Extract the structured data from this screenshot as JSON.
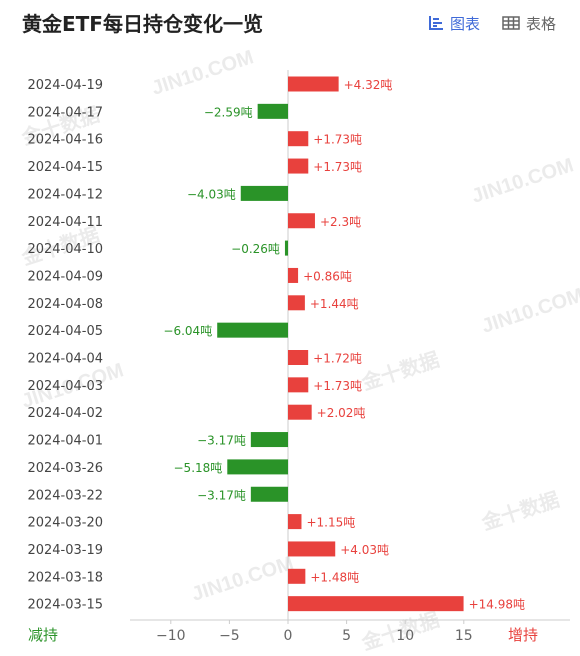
{
  "header": {
    "title": "黄金ETF每日持仓变化一览",
    "chart_tab": "图表",
    "table_tab": "表格"
  },
  "watermarks": [
    "JIN10.COM",
    "金十数据",
    "JIN10.COM",
    "金十数据",
    "JIN10.COM",
    "金十数据",
    "JIN10.COM",
    "金十数据",
    "JIN10.COM",
    "金十数据"
  ],
  "colors": {
    "positive": "#e8413d",
    "negative": "#2a9328",
    "active_tab": "#3f6ad8",
    "axis_text": "#666666"
  },
  "chart_data": {
    "type": "bar",
    "orientation": "horizontal",
    "title": "",
    "unit": "吨",
    "categories": [
      "2024-04-19",
      "2024-04-17",
      "2024-04-16",
      "2024-04-15",
      "2024-04-12",
      "2024-04-11",
      "2024-04-10",
      "2024-04-09",
      "2024-04-08",
      "2024-04-05",
      "2024-04-04",
      "2024-04-03",
      "2024-04-02",
      "2024-04-01",
      "2024-03-26",
      "2024-03-22",
      "2024-03-20",
      "2024-03-19",
      "2024-03-18",
      "2024-03-15"
    ],
    "values": [
      4.32,
      -2.59,
      1.73,
      1.73,
      -4.03,
      2.3,
      -0.26,
      0.86,
      1.44,
      -6.04,
      1.72,
      1.73,
      2.02,
      -3.17,
      -5.18,
      -3.17,
      1.15,
      4.03,
      1.48,
      14.98
    ],
    "labels": [
      "+4.32吨",
      "−2.59吨",
      "+1.73吨",
      "+1.73吨",
      "−4.03吨",
      "+2.3吨",
      "−0.26吨",
      "+0.86吨",
      "+1.44吨",
      "−6.04吨",
      "+1.72吨",
      "+1.73吨",
      "+2.02吨",
      "−3.17吨",
      "−5.18吨",
      "−3.17吨",
      "+1.15吨",
      "+4.03吨",
      "+1.48吨",
      "+14.98吨"
    ],
    "xlim": [
      -15,
      17.5
    ],
    "xticks": [
      -10,
      -5,
      0,
      5,
      10,
      15
    ],
    "xtick_labels": [
      "−10",
      "−5",
      "0",
      "5",
      "10",
      "15"
    ],
    "legend_left": "减持",
    "legend_right": "增持",
    "grid": false
  }
}
